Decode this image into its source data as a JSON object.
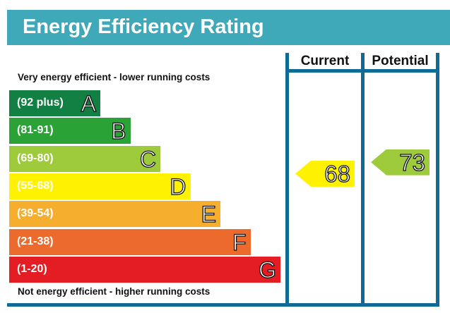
{
  "chart_data": {
    "type": "bar",
    "title": "Energy Efficiency Rating",
    "top_note": "Very energy efficient - lower running costs",
    "bottom_note": "Not energy efficient - higher running costs",
    "columns": [
      "Current",
      "Potential"
    ],
    "bands": [
      {
        "range": "(92 plus)",
        "letter": "A",
        "color": "#138043"
      },
      {
        "range": "(81-91)",
        "letter": "B",
        "color": "#2ba235"
      },
      {
        "range": "(69-80)",
        "letter": "C",
        "color": "#9dcb3c"
      },
      {
        "range": "(55-68)",
        "letter": "D",
        "color": "#fff200"
      },
      {
        "range": "(39-54)",
        "letter": "E",
        "color": "#f6ae2f"
      },
      {
        "range": "(21-38)",
        "letter": "F",
        "color": "#ec6a2b"
      },
      {
        "range": "(1-20)",
        "letter": "G",
        "color": "#e31d23"
      }
    ],
    "current": {
      "value": "68",
      "band": "D",
      "color": "#fff200"
    },
    "potential": {
      "value": "73",
      "band": "C",
      "color": "#9dcb3c"
    }
  }
}
